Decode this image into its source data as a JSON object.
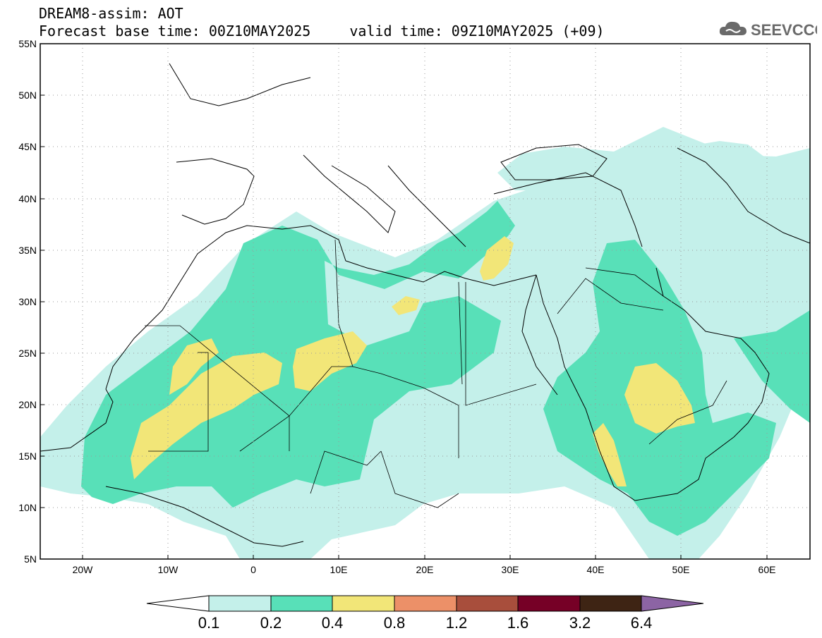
{
  "header": {
    "line1": "DREAM8-assim: AOT",
    "base_time": "Forecast base time: 00Z10MAY2025",
    "valid_time": "valid time: 09Z10MAY2025 (+09)",
    "logo_text": "SEEVCCC",
    "logo_icon": "cloud-icon"
  },
  "map": {
    "lon_range": [
      -25,
      65
    ],
    "lat_range": [
      5,
      55
    ],
    "grid": "dotted",
    "lat_labels": [
      "55N",
      "50N",
      "45N",
      "40N",
      "35N",
      "30N",
      "25N",
      "20N",
      "15N",
      "10N",
      "5N"
    ],
    "lon_labels": [
      "20W",
      "10W",
      "0",
      "10E",
      "20E",
      "30E",
      "40E",
      "50E",
      "60E"
    ]
  },
  "colorbar": {
    "levels": [
      "0.1",
      "0.2",
      "0.4",
      "0.8",
      "1.2",
      "1.6",
      "3.2",
      "6.4"
    ],
    "colors": [
      "#ffffff",
      "#c4f0ea",
      "#58e0b8",
      "#f2e678",
      "#ec9068",
      "#a84e3c",
      "#760026",
      "#3e2414",
      "#8c64a4"
    ]
  }
}
